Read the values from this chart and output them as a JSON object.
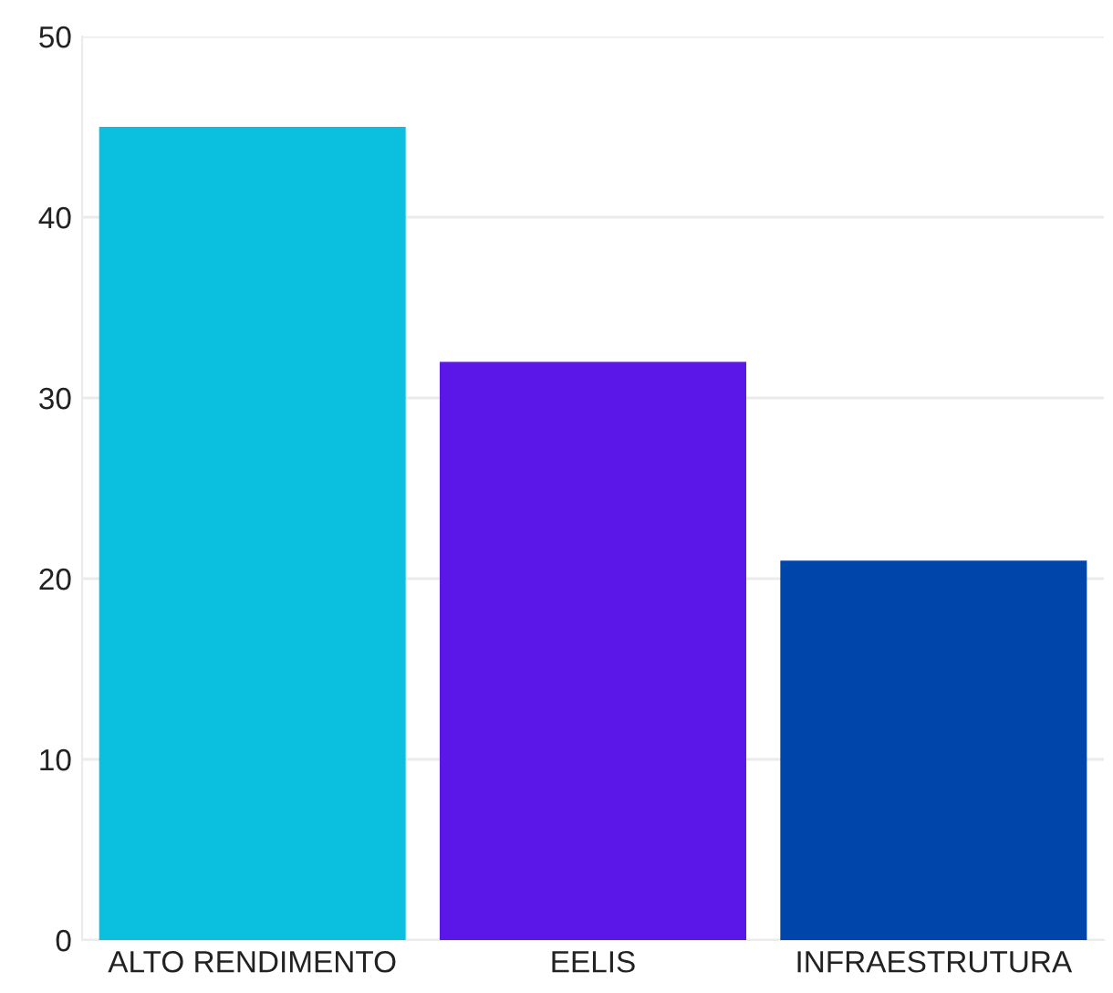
{
  "chart_data": {
    "type": "bar",
    "categories": [
      "ALTO RENDIMENTO",
      "EELIS",
      "INFRAESTRUTURA"
    ],
    "values": [
      45,
      32,
      21
    ],
    "colors": [
      "#0bbfdf",
      "#5b17e8",
      "#0046aa"
    ],
    "ylim": [
      0,
      50
    ],
    "yticks": [
      0,
      10,
      20,
      30,
      40,
      50
    ],
    "grid": "y"
  }
}
